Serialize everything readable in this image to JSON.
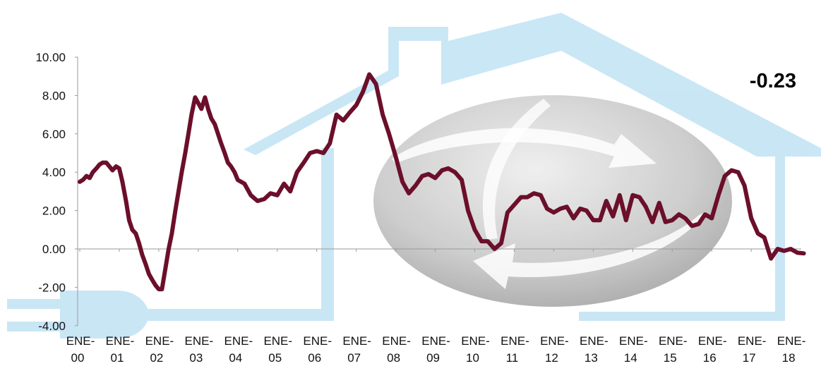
{
  "chart_data": {
    "type": "line",
    "title": "",
    "xlabel": "",
    "ylabel": "",
    "ylim": [
      -4,
      10
    ],
    "yticks": [
      "-4.00",
      "-2.00",
      "0.00",
      "2.00",
      "4.00",
      "6.00",
      "8.00",
      "10.00"
    ],
    "x_tick_labels": [
      [
        "ENE-",
        "00"
      ],
      [
        "ENE-",
        "01"
      ],
      [
        "ENE-",
        "02"
      ],
      [
        "ENE-",
        "03"
      ],
      [
        "ENE-",
        "04"
      ],
      [
        "ENE-",
        "05"
      ],
      [
        "ENE-",
        "06"
      ],
      [
        "ENE-",
        "07"
      ],
      [
        "ENE-",
        "08"
      ],
      [
        "ENE-",
        "09"
      ],
      [
        "ENE-",
        "10"
      ],
      [
        "ENE-",
        "11"
      ],
      [
        "ENE-",
        "12"
      ],
      [
        "ENE-",
        "13"
      ],
      [
        "ENE-",
        "14"
      ],
      [
        "ENE-",
        "15"
      ],
      [
        "ENE-",
        "16"
      ],
      [
        "ENE-",
        "17"
      ],
      [
        "ENE-",
        "18"
      ]
    ],
    "annotation": "-0.23",
    "grid": false,
    "legend": "none",
    "line_color": "#6b0f2a",
    "background_watermark": "house-plug-logo",
    "series": [
      {
        "x": [
          2000.0,
          2000.08,
          2000.17,
          2000.25,
          2000.33,
          2000.42,
          2000.5,
          2000.58,
          2000.67,
          2000.75,
          2000.83,
          2000.92,
          2001.0,
          2001.08,
          2001.17,
          2001.25,
          2001.33,
          2001.42,
          2001.5,
          2001.58,
          2001.67,
          2001.75,
          2001.83,
          2001.92,
          2002.0,
          2002.08,
          2002.17,
          2002.25,
          2002.33,
          2002.42,
          2002.5,
          2002.58,
          2002.67,
          2002.75,
          2002.83,
          2002.92,
          2003.0,
          2003.08,
          2003.17,
          2003.25,
          2003.33,
          2003.42,
          2003.5,
          2003.58,
          2003.67,
          2003.75,
          2003.83,
          2003.92,
          2004.0,
          2004.17,
          2004.33,
          2004.5,
          2004.67,
          2004.83,
          2005.0,
          2005.17,
          2005.33,
          2005.5,
          2005.67,
          2005.83,
          2006.0,
          2006.17,
          2006.33,
          2006.5,
          2006.67,
          2006.83,
          2007.0,
          2007.17,
          2007.33,
          2007.5,
          2007.67,
          2007.83,
          2008.0,
          2008.17,
          2008.33,
          2008.5,
          2008.67,
          2008.83,
          2009.0,
          2009.17,
          2009.33,
          2009.5,
          2009.67,
          2009.83,
          2010.0,
          2010.17,
          2010.33,
          2010.5,
          2010.67,
          2010.83,
          2011.0,
          2011.17,
          2011.33,
          2011.5,
          2011.67,
          2011.83,
          2012.0,
          2012.17,
          2012.33,
          2012.5,
          2012.67,
          2012.83,
          2013.0,
          2013.17,
          2013.33,
          2013.5,
          2013.67,
          2013.83,
          2014.0,
          2014.17,
          2014.33,
          2014.5,
          2014.67,
          2014.83,
          2015.0,
          2015.17,
          2015.33,
          2015.5,
          2015.67,
          2015.83,
          2016.0,
          2016.17,
          2016.33,
          2016.5,
          2016.67,
          2016.83,
          2017.0,
          2017.17,
          2017.33,
          2017.5,
          2017.67,
          2017.83,
          2018.0,
          2018.17,
          2018.33
        ],
        "y": [
          3.5,
          3.6,
          3.8,
          3.7,
          4.0,
          4.2,
          4.4,
          4.5,
          4.5,
          4.3,
          4.1,
          4.3,
          4.2,
          3.5,
          2.5,
          1.5,
          1.0,
          0.8,
          0.3,
          -0.3,
          -0.8,
          -1.3,
          -1.6,
          -1.9,
          -2.1,
          -2.1,
          -1.0,
          0.0,
          0.8,
          2.0,
          3.0,
          4.0,
          5.0,
          6.0,
          7.0,
          7.9,
          7.6,
          7.3,
          7.9,
          7.3,
          6.8,
          6.5,
          6.0,
          5.5,
          5.0,
          4.5,
          4.3,
          4.0,
          3.6,
          3.4,
          2.8,
          2.5,
          2.6,
          2.9,
          2.8,
          3.4,
          3.0,
          4.0,
          4.5,
          5.0,
          5.1,
          5.0,
          5.5,
          7.0,
          6.7,
          7.1,
          7.5,
          8.2,
          9.1,
          8.6,
          7.0,
          6.0,
          4.8,
          3.5,
          2.9,
          3.3,
          3.8,
          3.9,
          3.7,
          4.1,
          4.2,
          4.0,
          3.6,
          2.0,
          1.0,
          0.4,
          0.4,
          0.0,
          0.3,
          1.9,
          2.3,
          2.7,
          2.7,
          2.9,
          2.8,
          2.1,
          1.9,
          2.1,
          2.2,
          1.6,
          2.1,
          2.0,
          1.5,
          1.5,
          2.5,
          1.7,
          2.8,
          1.5,
          2.8,
          2.7,
          2.2,
          1.4,
          2.4,
          1.4,
          1.5,
          1.8,
          1.6,
          1.2,
          1.3,
          1.8,
          1.6,
          2.8,
          3.8,
          4.1,
          4.0,
          3.3,
          1.6,
          0.8,
          0.6,
          -0.5,
          0.0,
          -0.1,
          0.0,
          -0.2,
          -0.23
        ]
      }
    ]
  }
}
